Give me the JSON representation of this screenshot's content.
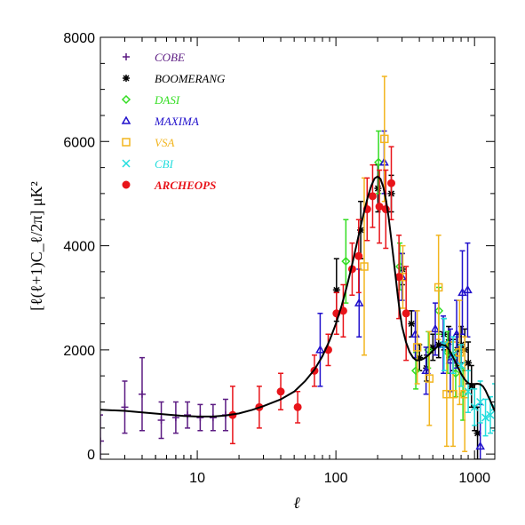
{
  "chart_data": {
    "type": "scatter",
    "xlabel": "ℓ",
    "ylabel": "[ℓ(ℓ+1)C_ℓ/2π] μK²",
    "xscale": "log",
    "xlim": [
      2,
      1400
    ],
    "ylim": [
      -100,
      8000
    ],
    "x_ticks": [
      10,
      100,
      1000
    ],
    "x_tick_labels": [
      "10",
      "100",
      "1000"
    ],
    "y_ticks": [
      0,
      2000,
      4000,
      6000,
      8000
    ],
    "y_tick_labels": [
      "0",
      "2000",
      "4000",
      "6000",
      "8000"
    ],
    "grid": false,
    "legend_position": "top-left",
    "series": [
      {
        "name": "COBE",
        "marker": "plus",
        "color": "#5b1a82",
        "points": [
          {
            "x": 2,
            "y": 250,
            "err": 500
          },
          {
            "x": 3,
            "y": 900,
            "err": 500
          },
          {
            "x": 4,
            "y": 1150,
            "err": 700
          },
          {
            "x": 5.5,
            "y": 650,
            "err": 350
          },
          {
            "x": 7,
            "y": 700,
            "err": 300
          },
          {
            "x": 8.5,
            "y": 750,
            "err": 250
          },
          {
            "x": 10.5,
            "y": 700,
            "err": 250
          },
          {
            "x": 13,
            "y": 700,
            "err": 250
          },
          {
            "x": 16,
            "y": 750,
            "err": 300
          }
        ]
      },
      {
        "name": "BOOMERANG",
        "marker": "asterisk",
        "color": "#000000",
        "points": [
          {
            "x": 101,
            "y": 3150,
            "err": 600
          },
          {
            "x": 151,
            "y": 4300,
            "err": 550
          },
          {
            "x": 201,
            "y": 5100,
            "err": 450
          },
          {
            "x": 251,
            "y": 5000,
            "err": 350
          },
          {
            "x": 301,
            "y": 3550,
            "err": 300
          },
          {
            "x": 351,
            "y": 2500,
            "err": 250
          },
          {
            "x": 401,
            "y": 1850,
            "err": 250
          },
          {
            "x": 451,
            "y": 1650,
            "err": 250
          },
          {
            "x": 501,
            "y": 2050,
            "err": 250
          },
          {
            "x": 551,
            "y": 2100,
            "err": 250
          },
          {
            "x": 601,
            "y": 2300,
            "err": 300
          },
          {
            "x": 651,
            "y": 2150,
            "err": 300
          },
          {
            "x": 701,
            "y": 1900,
            "err": 300
          },
          {
            "x": 751,
            "y": 2000,
            "err": 300
          },
          {
            "x": 801,
            "y": 2100,
            "err": 350
          },
          {
            "x": 851,
            "y": 2000,
            "err": 400
          },
          {
            "x": 901,
            "y": 1750,
            "err": 400
          },
          {
            "x": 951,
            "y": 1300,
            "err": 400
          },
          {
            "x": 1001,
            "y": 900,
            "err": 450
          },
          {
            "x": 1051,
            "y": 400,
            "err": 500
          }
        ]
      },
      {
        "name": "DASI",
        "marker": "diamond",
        "color": "#33dd22",
        "points": [
          {
            "x": 118,
            "y": 3700,
            "err": 800
          },
          {
            "x": 203,
            "y": 5600,
            "err": 600
          },
          {
            "x": 289,
            "y": 3600,
            "err": 450
          },
          {
            "x": 377,
            "y": 1600,
            "err": 350
          },
          {
            "x": 465,
            "y": 2000,
            "err": 350
          },
          {
            "x": 553,
            "y": 2750,
            "err": 450
          },
          {
            "x": 641,
            "y": 1950,
            "err": 400
          },
          {
            "x": 731,
            "y": 1550,
            "err": 450
          },
          {
            "x": 825,
            "y": 1150,
            "err": 500
          }
        ]
      },
      {
        "name": "MAXIMA",
        "marker": "triangle",
        "color": "#2211cc",
        "points": [
          {
            "x": 77,
            "y": 2000,
            "err": 700
          },
          {
            "x": 147,
            "y": 2900,
            "err": 650
          },
          {
            "x": 223,
            "y": 5600,
            "err": 600
          },
          {
            "x": 300,
            "y": 3400,
            "err": 450
          },
          {
            "x": 374,
            "y": 2300,
            "err": 450
          },
          {
            "x": 447,
            "y": 1600,
            "err": 450
          },
          {
            "x": 521,
            "y": 2400,
            "err": 500
          },
          {
            "x": 595,
            "y": 2100,
            "err": 550
          },
          {
            "x": 669,
            "y": 1800,
            "err": 600
          },
          {
            "x": 743,
            "y": 2300,
            "err": 650
          },
          {
            "x": 817,
            "y": 3100,
            "err": 800
          },
          {
            "x": 892,
            "y": 3150,
            "err": 900
          },
          {
            "x": 1100,
            "y": 150,
            "err": 800
          }
        ]
      },
      {
        "name": "VSA",
        "marker": "square",
        "color": "#f2b51f",
        "points": [
          {
            "x": 160,
            "y": 3600,
            "err": 1700
          },
          {
            "x": 224,
            "y": 6050,
            "err": 1200
          },
          {
            "x": 304,
            "y": 3400,
            "err": 600
          },
          {
            "x": 386,
            "y": 2050,
            "err": 700
          },
          {
            "x": 472,
            "y": 1450,
            "err": 900
          },
          {
            "x": 550,
            "y": 3200,
            "err": 1000
          },
          {
            "x": 630,
            "y": 1150,
            "err": 1000
          },
          {
            "x": 700,
            "y": 1150,
            "err": 1000
          },
          {
            "x": 780,
            "y": 1950,
            "err": 1000
          },
          {
            "x": 850,
            "y": 1150,
            "err": 1100
          }
        ]
      },
      {
        "name": "CBI",
        "marker": "cross",
        "color": "#22dddd",
        "points": [
          {
            "x": 603,
            "y": 2100,
            "err": 500
          },
          {
            "x": 700,
            "y": 1900,
            "err": 350
          },
          {
            "x": 800,
            "y": 1700,
            "err": 400
          },
          {
            "x": 900,
            "y": 1200,
            "err": 400
          },
          {
            "x": 1000,
            "y": 900,
            "err": 350
          },
          {
            "x": 1100,
            "y": 1000,
            "err": 400
          },
          {
            "x": 1200,
            "y": 700,
            "err": 350
          },
          {
            "x": 1300,
            "y": 750,
            "err": 350
          },
          {
            "x": 1400,
            "y": 900,
            "err": 450
          }
        ]
      },
      {
        "name": "ARCHEOPS",
        "marker": "filled-circle",
        "color": "#e8141a",
        "points": [
          {
            "x": 18,
            "y": 750,
            "err": 550
          },
          {
            "x": 28,
            "y": 900,
            "err": 400
          },
          {
            "x": 40,
            "y": 1200,
            "err": 350
          },
          {
            "x": 53,
            "y": 900,
            "err": 300
          },
          {
            "x": 70,
            "y": 1600,
            "err": 300
          },
          {
            "x": 88,
            "y": 2000,
            "err": 300
          },
          {
            "x": 101,
            "y": 2700,
            "err": 400
          },
          {
            "x": 113,
            "y": 2750,
            "err": 500
          },
          {
            "x": 131,
            "y": 3550,
            "err": 500
          },
          {
            "x": 146,
            "y": 3800,
            "err": 700
          },
          {
            "x": 168,
            "y": 4700,
            "err": 600
          },
          {
            "x": 184,
            "y": 4950,
            "err": 600
          },
          {
            "x": 206,
            "y": 4750,
            "err": 700
          },
          {
            "x": 229,
            "y": 4700,
            "err": 750
          },
          {
            "x": 251,
            "y": 5200,
            "err": 700
          },
          {
            "x": 285,
            "y": 3400,
            "err": 800
          },
          {
            "x": 321,
            "y": 2700,
            "err": 900
          }
        ]
      }
    ],
    "model_curve": {
      "color": "#000000",
      "x": [
        2,
        3,
        4,
        6,
        8,
        10,
        13,
        16,
        20,
        25,
        30,
        40,
        50,
        60,
        70,
        80,
        90,
        100,
        110,
        120,
        130,
        140,
        150,
        160,
        170,
        180,
        190,
        200,
        210,
        220,
        230,
        240,
        250,
        260,
        270,
        280,
        290,
        300,
        320,
        340,
        360,
        380,
        400,
        430,
        460,
        500,
        540,
        580,
        620,
        660,
        700,
        750,
        800,
        850,
        900,
        950,
        1000,
        1050,
        1100,
        1150,
        1200,
        1300,
        1400
      ],
      "y": [
        850,
        830,
        800,
        760,
        730,
        720,
        720,
        740,
        780,
        850,
        920,
        1050,
        1200,
        1400,
        1620,
        1880,
        2180,
        2500,
        2850,
        3220,
        3600,
        3980,
        4340,
        4660,
        4940,
        5150,
        5290,
        5330,
        5280,
        5120,
        4870,
        4540,
        4160,
        3770,
        3380,
        3020,
        2700,
        2450,
        2150,
        1960,
        1850,
        1800,
        1800,
        1830,
        1890,
        1980,
        2060,
        2100,
        2080,
        1990,
        1860,
        1690,
        1540,
        1430,
        1360,
        1340,
        1340,
        1350,
        1340,
        1300,
        1220,
        1020,
        820
      ]
    }
  }
}
